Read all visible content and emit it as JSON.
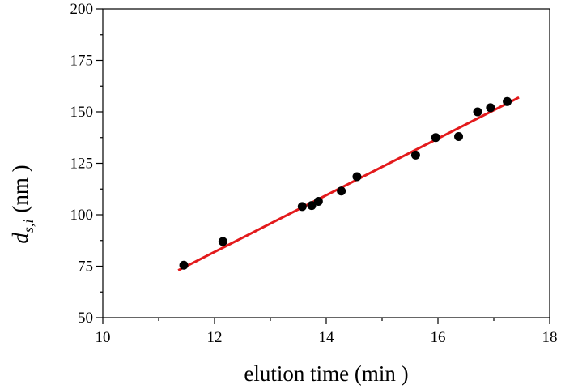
{
  "chart_data": {
    "type": "scatter",
    "xlabel": "elution time (min )",
    "ylabel": {
      "symbol": "d",
      "subscript": "s,i",
      "unit": "(nm )"
    },
    "xlim": [
      10,
      18
    ],
    "ylim": [
      50,
      200
    ],
    "x_ticks": [
      "10",
      "12",
      "14",
      "16",
      "18"
    ],
    "y_ticks": [
      "50",
      "75",
      "100",
      "125",
      "150",
      "175",
      "200"
    ],
    "grid": false,
    "legend": "none",
    "series": [
      {
        "kind": "scatter",
        "color": "#000000",
        "points": [
          {
            "x": 11.45,
            "y": 75.5
          },
          {
            "x": 12.15,
            "y": 87
          },
          {
            "x": 13.57,
            "y": 104
          },
          {
            "x": 13.74,
            "y": 104.5
          },
          {
            "x": 13.86,
            "y": 106.5
          },
          {
            "x": 14.27,
            "y": 111.5
          },
          {
            "x": 14.55,
            "y": 118.5
          },
          {
            "x": 15.6,
            "y": 129
          },
          {
            "x": 15.96,
            "y": 137.5
          },
          {
            "x": 16.37,
            "y": 138
          },
          {
            "x": 16.71,
            "y": 150
          },
          {
            "x": 16.94,
            "y": 152
          },
          {
            "x": 17.24,
            "y": 155
          }
        ]
      },
      {
        "kind": "line",
        "color": "#e31a1c",
        "points": [
          {
            "x": 11.35,
            "y": 73
          },
          {
            "x": 17.45,
            "y": 157
          }
        ]
      }
    ]
  }
}
